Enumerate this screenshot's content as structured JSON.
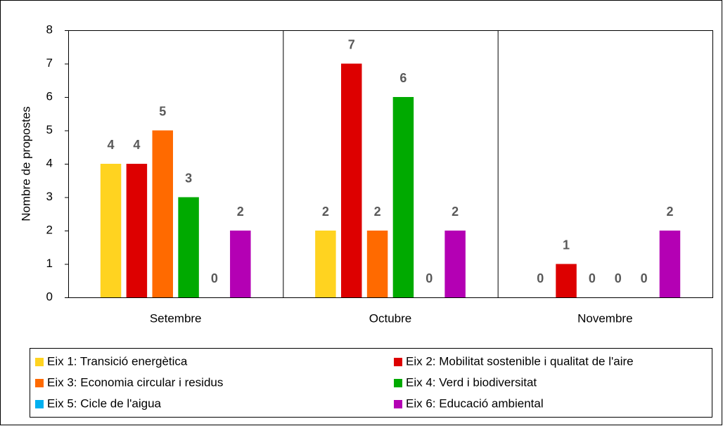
{
  "chart_data": {
    "type": "bar",
    "ylabel": "Nombre de propostes",
    "categories": [
      "Setembre",
      "Octubre",
      "Novembre"
    ],
    "series": [
      {
        "name": "Eix 1: Transició energètica",
        "color": "#FFD320",
        "values": [
          4,
          2,
          0
        ]
      },
      {
        "name": "Eix 2: Mobilitat sostenible i qualitat de l'aire",
        "color": "#DD0000",
        "values": [
          4,
          7,
          1
        ]
      },
      {
        "name": "Eix 3: Economia circular i residus",
        "color": "#FF6A00",
        "values": [
          5,
          2,
          0
        ]
      },
      {
        "name": "Eix 4: Verd i biodiversitat",
        "color": "#00AA00",
        "values": [
          3,
          6,
          0
        ]
      },
      {
        "name": "Eix 5: Cicle de l'aigua",
        "color": "#00B0F0",
        "values": [
          0,
          0,
          0
        ]
      },
      {
        "name": "Eix 6: Educació ambiental",
        "color": "#B400B4",
        "values": [
          2,
          2,
          2
        ]
      }
    ],
    "ylim": [
      0,
      8
    ],
    "yticks": [
      0,
      1,
      2,
      3,
      4,
      5,
      6,
      7,
      8
    ],
    "grid": false,
    "legend": "bottom"
  }
}
